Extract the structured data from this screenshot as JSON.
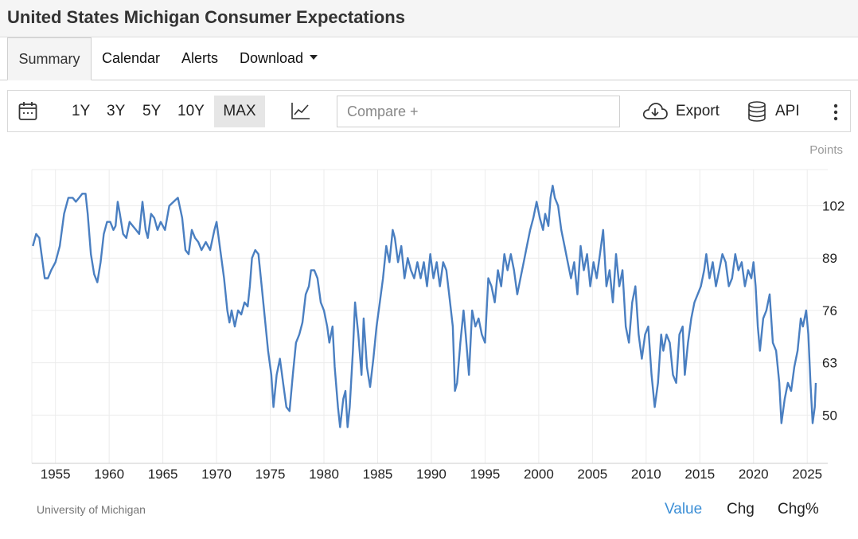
{
  "header": {
    "title": "United States Michigan Consumer Expectations"
  },
  "tabs": [
    {
      "label": "Summary",
      "active": true
    },
    {
      "label": "Calendar"
    },
    {
      "label": "Alerts"
    },
    {
      "label": "Download",
      "has_dropdown": true
    }
  ],
  "toolbar": {
    "ranges": [
      "1Y",
      "3Y",
      "5Y",
      "10Y",
      "MAX"
    ],
    "selected_range": "MAX",
    "compare_placeholder": "Compare +",
    "export_label": "Export",
    "api_label": "API",
    "icons": [
      "calendar-icon",
      "line-chart-icon",
      "cloud-download-icon",
      "database-icon",
      "more-vertical-icon"
    ]
  },
  "footer": {
    "source": "University of Michigan",
    "modes": [
      "Value",
      "Chg",
      "Chg%"
    ],
    "active_mode": "Value"
  },
  "colors": {
    "line": "#4a7fc1",
    "active_mode": "#3d8fd6",
    "grid": "#ececec"
  },
  "chart_data": {
    "type": "line",
    "title": "",
    "xlabel": "",
    "ylabel": "Points",
    "xlim": [
      1952.8,
      2025.8
    ],
    "ylim": [
      38,
      111
    ],
    "x_ticks": [
      1955,
      1960,
      1965,
      1970,
      1975,
      1980,
      1985,
      1990,
      1995,
      2000,
      2005,
      2010,
      2015,
      2020,
      2025
    ],
    "y_ticks": [
      50,
      63,
      76,
      89,
      102
    ],
    "grid": true,
    "y_axis_position": "right",
    "series": [
      {
        "points": [
          [
            1952.9,
            92
          ],
          [
            1953.2,
            95
          ],
          [
            1953.5,
            94
          ],
          [
            1953.8,
            88
          ],
          [
            1954.0,
            84
          ],
          [
            1954.3,
            84
          ],
          [
            1954.6,
            86
          ],
          [
            1955.0,
            88
          ],
          [
            1955.4,
            92
          ],
          [
            1955.8,
            100
          ],
          [
            1956.2,
            104
          ],
          [
            1956.6,
            104
          ],
          [
            1956.9,
            103
          ],
          [
            1957.2,
            104
          ],
          [
            1957.5,
            105
          ],
          [
            1957.8,
            105
          ],
          [
            1958.0,
            100
          ],
          [
            1958.3,
            90
          ],
          [
            1958.6,
            85
          ],
          [
            1958.9,
            83
          ],
          [
            1959.2,
            88
          ],
          [
            1959.5,
            95
          ],
          [
            1959.8,
            98
          ],
          [
            1960.1,
            98
          ],
          [
            1960.4,
            96
          ],
          [
            1960.6,
            97
          ],
          [
            1960.8,
            103
          ],
          [
            1961.0,
            100
          ],
          [
            1961.3,
            95
          ],
          [
            1961.6,
            94
          ],
          [
            1961.9,
            98
          ],
          [
            1962.2,
            97
          ],
          [
            1962.5,
            96
          ],
          [
            1962.8,
            95
          ],
          [
            1963.1,
            103
          ],
          [
            1963.4,
            96
          ],
          [
            1963.6,
            94
          ],
          [
            1963.9,
            100
          ],
          [
            1964.2,
            99
          ],
          [
            1964.5,
            96
          ],
          [
            1964.8,
            98
          ],
          [
            1965.2,
            96
          ],
          [
            1965.6,
            102
          ],
          [
            1966.0,
            103
          ],
          [
            1966.4,
            104
          ],
          [
            1966.8,
            99
          ],
          [
            1967.1,
            91
          ],
          [
            1967.4,
            90
          ],
          [
            1967.7,
            96
          ],
          [
            1968.0,
            94
          ],
          [
            1968.3,
            93
          ],
          [
            1968.6,
            91
          ],
          [
            1969.0,
            93
          ],
          [
            1969.4,
            91
          ],
          [
            1969.8,
            96
          ],
          [
            1970.0,
            98
          ],
          [
            1970.3,
            92
          ],
          [
            1970.7,
            84
          ],
          [
            1971.0,
            76
          ],
          [
            1971.2,
            73
          ],
          [
            1971.4,
            76
          ],
          [
            1971.7,
            72
          ],
          [
            1972.0,
            76
          ],
          [
            1972.3,
            75
          ],
          [
            1972.6,
            78
          ],
          [
            1972.9,
            77
          ],
          [
            1973.1,
            82
          ],
          [
            1973.3,
            89
          ],
          [
            1973.6,
            91
          ],
          [
            1973.9,
            90
          ],
          [
            1974.2,
            82
          ],
          [
            1974.5,
            74
          ],
          [
            1974.8,
            66
          ],
          [
            1975.1,
            60
          ],
          [
            1975.3,
            52
          ],
          [
            1975.6,
            60
          ],
          [
            1975.9,
            64
          ],
          [
            1976.2,
            58
          ],
          [
            1976.5,
            52
          ],
          [
            1976.8,
            51
          ],
          [
            1977.1,
            60
          ],
          [
            1977.4,
            68
          ],
          [
            1977.7,
            70
          ],
          [
            1978.0,
            73
          ],
          [
            1978.3,
            80
          ],
          [
            1978.6,
            82
          ],
          [
            1978.8,
            86
          ],
          [
            1979.1,
            86
          ],
          [
            1979.4,
            84
          ],
          [
            1979.7,
            78
          ],
          [
            1980.0,
            76
          ],
          [
            1980.3,
            72
          ],
          [
            1980.5,
            68
          ],
          [
            1980.8,
            72
          ],
          [
            1981.0,
            62
          ],
          [
            1981.3,
            52
          ],
          [
            1981.5,
            47
          ],
          [
            1981.8,
            54
          ],
          [
            1982.0,
            56
          ],
          [
            1982.2,
            47
          ],
          [
            1982.4,
            52
          ],
          [
            1982.7,
            66
          ],
          [
            1982.9,
            78
          ],
          [
            1983.2,
            70
          ],
          [
            1983.5,
            60
          ],
          [
            1983.7,
            74
          ],
          [
            1984.0,
            62
          ],
          [
            1984.3,
            57
          ],
          [
            1984.6,
            64
          ],
          [
            1984.9,
            72
          ],
          [
            1985.2,
            78
          ],
          [
            1985.5,
            84
          ],
          [
            1985.8,
            92
          ],
          [
            1986.1,
            88
          ],
          [
            1986.4,
            96
          ],
          [
            1986.6,
            94
          ],
          [
            1986.9,
            88
          ],
          [
            1987.2,
            92
          ],
          [
            1987.5,
            84
          ],
          [
            1987.8,
            89
          ],
          [
            1988.1,
            86
          ],
          [
            1988.4,
            84
          ],
          [
            1988.7,
            88
          ],
          [
            1989.0,
            84
          ],
          [
            1989.3,
            88
          ],
          [
            1989.6,
            82
          ],
          [
            1989.9,
            90
          ],
          [
            1990.2,
            84
          ],
          [
            1990.5,
            88
          ],
          [
            1990.8,
            82
          ],
          [
            1991.1,
            88
          ],
          [
            1991.4,
            86
          ],
          [
            1991.7,
            79
          ],
          [
            1992.0,
            72
          ],
          [
            1992.2,
            56
          ],
          [
            1992.4,
            58
          ],
          [
            1992.7,
            68
          ],
          [
            1993.0,
            76
          ],
          [
            1993.2,
            70
          ],
          [
            1993.5,
            60
          ],
          [
            1993.8,
            76
          ],
          [
            1994.1,
            72
          ],
          [
            1994.4,
            74
          ],
          [
            1994.7,
            70
          ],
          [
            1995.0,
            68
          ],
          [
            1995.3,
            84
          ],
          [
            1995.6,
            82
          ],
          [
            1995.9,
            78
          ],
          [
            1996.2,
            86
          ],
          [
            1996.5,
            82
          ],
          [
            1996.8,
            90
          ],
          [
            1997.1,
            86
          ],
          [
            1997.4,
            90
          ],
          [
            1997.7,
            86
          ],
          [
            1998.0,
            80
          ],
          [
            1998.3,
            84
          ],
          [
            1998.6,
            88
          ],
          [
            1998.9,
            92
          ],
          [
            1999.2,
            96
          ],
          [
            1999.5,
            99
          ],
          [
            1999.8,
            103
          ],
          [
            2000.1,
            99
          ],
          [
            2000.4,
            96
          ],
          [
            2000.6,
            100
          ],
          [
            2000.9,
            97
          ],
          [
            2001.1,
            104
          ],
          [
            2001.3,
            107
          ],
          [
            2001.5,
            104
          ],
          [
            2001.8,
            102
          ],
          [
            2002.1,
            96
          ],
          [
            2002.4,
            92
          ],
          [
            2002.7,
            88
          ],
          [
            2003.0,
            84
          ],
          [
            2003.3,
            88
          ],
          [
            2003.6,
            80
          ],
          [
            2003.9,
            92
          ],
          [
            2004.2,
            86
          ],
          [
            2004.5,
            90
          ],
          [
            2004.8,
            82
          ],
          [
            2005.1,
            88
          ],
          [
            2005.4,
            84
          ],
          [
            2005.7,
            90
          ],
          [
            2006.0,
            96
          ],
          [
            2006.3,
            82
          ],
          [
            2006.6,
            86
          ],
          [
            2006.9,
            78
          ],
          [
            2007.2,
            90
          ],
          [
            2007.5,
            82
          ],
          [
            2007.8,
            86
          ],
          [
            2008.1,
            72
          ],
          [
            2008.4,
            68
          ],
          [
            2008.7,
            78
          ],
          [
            2009.0,
            82
          ],
          [
            2009.3,
            70
          ],
          [
            2009.6,
            64
          ],
          [
            2009.9,
            70
          ],
          [
            2010.2,
            72
          ],
          [
            2010.5,
            60
          ],
          [
            2010.8,
            52
          ],
          [
            2011.1,
            58
          ],
          [
            2011.4,
            70
          ],
          [
            2011.6,
            66
          ],
          [
            2011.9,
            70
          ],
          [
            2012.2,
            68
          ],
          [
            2012.5,
            60
          ],
          [
            2012.8,
            58
          ],
          [
            2013.1,
            70
          ],
          [
            2013.4,
            72
          ],
          [
            2013.6,
            60
          ],
          [
            2013.9,
            68
          ],
          [
            2014.2,
            74
          ],
          [
            2014.5,
            78
          ],
          [
            2014.8,
            80
          ],
          [
            2015.1,
            82
          ],
          [
            2015.4,
            86
          ],
          [
            2015.6,
            90
          ],
          [
            2015.9,
            84
          ],
          [
            2016.2,
            88
          ],
          [
            2016.5,
            82
          ],
          [
            2016.8,
            86
          ],
          [
            2017.1,
            90
          ],
          [
            2017.4,
            88
          ],
          [
            2017.7,
            82
          ],
          [
            2018.0,
            84
          ],
          [
            2018.3,
            90
          ],
          [
            2018.6,
            86
          ],
          [
            2018.9,
            88
          ],
          [
            2019.2,
            82
          ],
          [
            2019.5,
            86
          ],
          [
            2019.8,
            84
          ],
          [
            2020.0,
            88
          ],
          [
            2020.2,
            82
          ],
          [
            2020.4,
            72
          ],
          [
            2020.6,
            66
          ],
          [
            2020.9,
            74
          ],
          [
            2021.2,
            76
          ],
          [
            2021.5,
            80
          ],
          [
            2021.8,
            68
          ],
          [
            2022.1,
            66
          ],
          [
            2022.4,
            58
          ],
          [
            2022.6,
            48
          ],
          [
            2022.9,
            54
          ],
          [
            2023.2,
            58
          ],
          [
            2023.5,
            56
          ],
          [
            2023.8,
            62
          ],
          [
            2024.1,
            66
          ],
          [
            2024.4,
            74
          ],
          [
            2024.6,
            72
          ],
          [
            2024.9,
            76
          ],
          [
            2025.1,
            70
          ],
          [
            2025.3,
            58
          ],
          [
            2025.5,
            48
          ],
          [
            2025.7,
            52
          ],
          [
            2025.8,
            58
          ]
        ]
      }
    ]
  }
}
